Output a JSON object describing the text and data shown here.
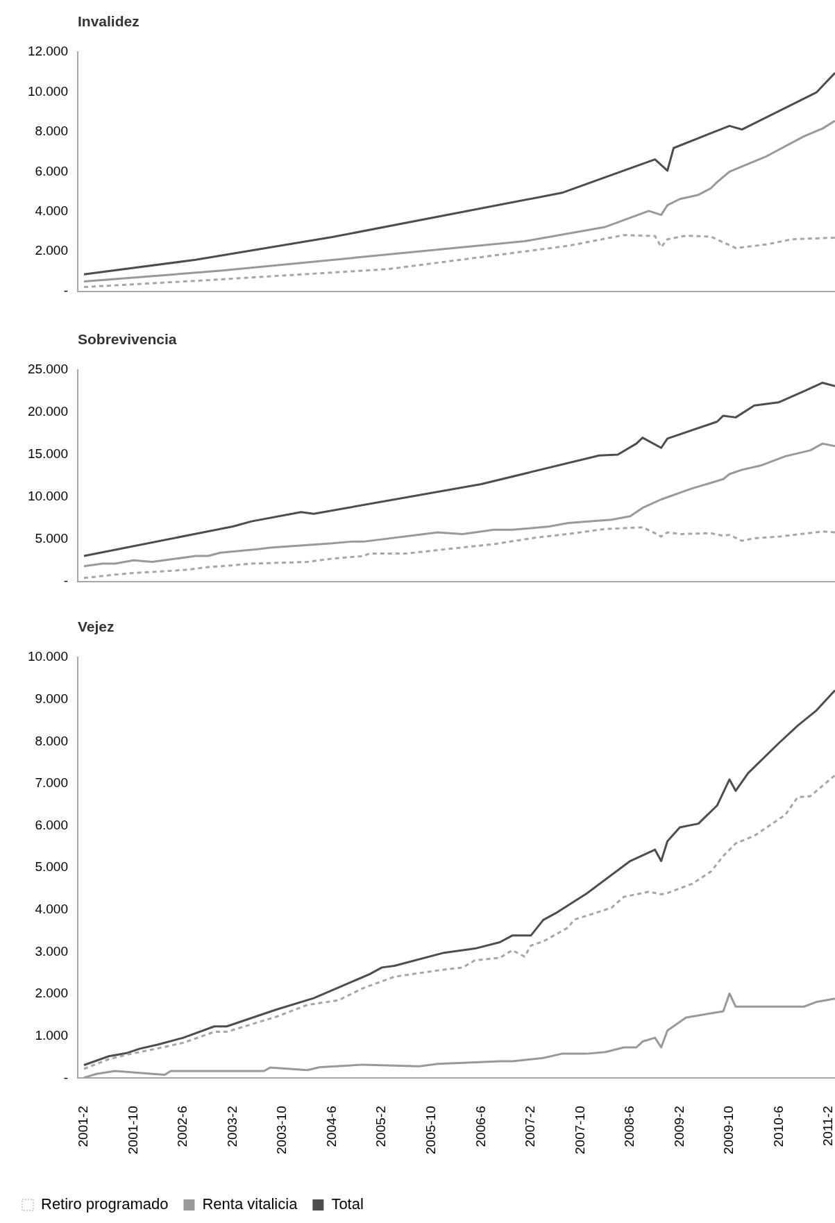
{
  "chart_data": [
    {
      "type": "line",
      "title": "Invalidez",
      "xlim": [
        "2001-01",
        "2011-03"
      ],
      "ylim": [
        0,
        12000
      ],
      "yticks": [
        {
          "value": 0,
          "label": "-"
        },
        {
          "value": 2000,
          "label": "2.000"
        },
        {
          "value": 4000,
          "label": "4.000"
        },
        {
          "value": 6000,
          "label": "6.000"
        },
        {
          "value": 8000,
          "label": "8.000"
        },
        {
          "value": 10000,
          "label": "10.000"
        },
        {
          "value": 12000,
          "label": "12.000"
        }
      ],
      "tick_labels": "y",
      "grid": false,
      "marker": "none",
      "series": [
        {
          "color": "#a6a6a6",
          "line_style": "dashed",
          "x": [
            "2001-02",
            "2002-09",
            "2005-03",
            "2007-08",
            "2008-05",
            "2008-10",
            "2008-11",
            "2008-12",
            "2009-03",
            "2009-07",
            "2009-11",
            "2010-04",
            "2010-08",
            "2011-03"
          ],
          "values": [
            210,
            540,
            1110,
            2280,
            2820,
            2770,
            2220,
            2610,
            2790,
            2740,
            2170,
            2350,
            2610,
            2690
          ]
        },
        {
          "color": "#999999",
          "line_style": "solid",
          "x": [
            "2001-02",
            "2002-12",
            "2007-01",
            "2008-02",
            "2008-09",
            "2008-11",
            "2008-12",
            "2009-02",
            "2009-05",
            "2009-07",
            "2009-08",
            "2009-10",
            "2009-12",
            "2010-04",
            "2010-10",
            "2011-01",
            "2011-03"
          ],
          "values": [
            490,
            1030,
            2510,
            3230,
            4030,
            3830,
            4320,
            4630,
            4840,
            5170,
            5480,
            6000,
            6260,
            6780,
            7780,
            8170,
            8560
          ]
        },
        {
          "color": "#4d4d4d",
          "line_style": "solid",
          "x": [
            "2001-02",
            "2002-08",
            "2004-06",
            "2007-07",
            "2008-10",
            "2008-12",
            "2009-01",
            "2009-10",
            "2009-12",
            "2010-12",
            "2011-03"
          ],
          "values": [
            850,
            1580,
            2720,
            4940,
            6620,
            6050,
            7190,
            8300,
            8120,
            9980,
            10960
          ]
        }
      ]
    },
    {
      "type": "line",
      "title": "Sobrevivencia",
      "xlim": [
        "2001-01",
        "2011-03"
      ],
      "ylim": [
        0,
        25000
      ],
      "yticks": [
        {
          "value": 0,
          "label": "-"
        },
        {
          "value": 5000,
          "label": "5.000"
        },
        {
          "value": 10000,
          "label": "10.000"
        },
        {
          "value": 15000,
          "label": "15.000"
        },
        {
          "value": 20000,
          "label": "20.000"
        },
        {
          "value": 25000,
          "label": "25.000"
        }
      ],
      "tick_labels": "y",
      "grid": false,
      "marker": "none",
      "series": [
        {
          "color": "#a6a6a6",
          "line_style": "dashed",
          "x": [
            "2001-02",
            "2001-07",
            "2001-10",
            "2002-03",
            "2002-07",
            "2002-10",
            "2003-02",
            "2003-05",
            "2004-02",
            "2004-06",
            "2004-11",
            "2004-12",
            "2005-06",
            "2005-11",
            "2006-04",
            "2006-08",
            "2007-03",
            "2007-09",
            "2008-02",
            "2008-08",
            "2008-10",
            "2008-11",
            "2008-12",
            "2009-02",
            "2009-07",
            "2009-09",
            "2009-10",
            "2009-12",
            "2010-02",
            "2010-06",
            "2011-01",
            "2011-03"
          ],
          "values": [
            400,
            800,
            1000,
            1200,
            1400,
            1700,
            1900,
            2100,
            2300,
            2700,
            3000,
            3300,
            3300,
            3700,
            4100,
            4400,
            5200,
            5700,
            6200,
            6400,
            5700,
            5300,
            5800,
            5600,
            5700,
            5400,
            5500,
            4800,
            5100,
            5300,
            5900,
            5800
          ]
        },
        {
          "color": "#999999",
          "line_style": "solid",
          "x": [
            "2001-02",
            "2001-05",
            "2001-07",
            "2001-10",
            "2002-01",
            "2002-08",
            "2002-10",
            "2002-12",
            "2003-06",
            "2003-08",
            "2004-02",
            "2004-06",
            "2004-09",
            "2004-11",
            "2005-11",
            "2006-03",
            "2006-08",
            "2006-11",
            "2007-05",
            "2007-08",
            "2008-03",
            "2008-06",
            "2008-08",
            "2008-11",
            "2009-04",
            "2009-09",
            "2009-10",
            "2009-12",
            "2010-03",
            "2010-07",
            "2010-11",
            "2011-01",
            "2011-03"
          ],
          "values": [
            1800,
            2100,
            2100,
            2500,
            2300,
            3000,
            3000,
            3400,
            3800,
            4000,
            4300,
            4500,
            4700,
            4700,
            5800,
            5600,
            6100,
            6100,
            6500,
            6900,
            7300,
            7700,
            8700,
            9700,
            11000,
            12100,
            12700,
            13200,
            13700,
            14800,
            15500,
            16300,
            16000
          ]
        },
        {
          "color": "#4d4d4d",
          "line_style": "solid",
          "x": [
            "2001-02",
            "2003-02",
            "2003-05",
            "2004-01",
            "2004-03",
            "2006-06",
            "2008-01",
            "2008-04",
            "2008-07",
            "2008-08",
            "2008-11",
            "2008-12",
            "2009-08",
            "2009-09",
            "2009-11",
            "2010-02",
            "2010-06",
            "2010-10",
            "2011-01",
            "2011-03"
          ],
          "values": [
            3000,
            6500,
            7100,
            8200,
            8000,
            11500,
            14900,
            15000,
            16300,
            17000,
            15800,
            16900,
            18900,
            19600,
            19400,
            20800,
            21200,
            22500,
            23500,
            23100
          ]
        }
      ]
    },
    {
      "type": "line",
      "title": "Vejez",
      "xlim": [
        "2001-01",
        "2011-03"
      ],
      "xticks": [
        {
          "value": "2001-02",
          "label": "2001-2"
        },
        {
          "value": "2001-10",
          "label": "2001-10"
        },
        {
          "value": "2002-06",
          "label": "2002-6"
        },
        {
          "value": "2003-02",
          "label": "2003-2"
        },
        {
          "value": "2003-10",
          "label": "2003-10"
        },
        {
          "value": "2004-06",
          "label": "2004-6"
        },
        {
          "value": "2005-02",
          "label": "2005-2"
        },
        {
          "value": "2005-10",
          "label": "2005-10"
        },
        {
          "value": "2006-06",
          "label": "2006-6"
        },
        {
          "value": "2007-02",
          "label": "2007-2"
        },
        {
          "value": "2007-10",
          "label": "2007-10"
        },
        {
          "value": "2008-06",
          "label": "2008-6"
        },
        {
          "value": "2009-02",
          "label": "2009-2"
        },
        {
          "value": "2009-10",
          "label": "2009-10"
        },
        {
          "value": "2010-06",
          "label": "2010-6"
        },
        {
          "value": "2011-02",
          "label": "2011-2"
        }
      ],
      "ylim": [
        0,
        10000
      ],
      "yticks": [
        {
          "value": 0,
          "label": "-"
        },
        {
          "value": 1000,
          "label": "1.000"
        },
        {
          "value": 2000,
          "label": "2.000"
        },
        {
          "value": 3000,
          "label": "3.000"
        },
        {
          "value": 4000,
          "label": "4.000"
        },
        {
          "value": 5000,
          "label": "5.000"
        },
        {
          "value": 6000,
          "label": "6.000"
        },
        {
          "value": 7000,
          "label": "7.000"
        },
        {
          "value": 8000,
          "label": "8.000"
        },
        {
          "value": 9000,
          "label": "9.000"
        },
        {
          "value": 10000,
          "label": "10.000"
        }
      ],
      "grid": false,
      "marker": "none",
      "legend": "bottom",
      "series": [
        {
          "name": "Retiro programado",
          "color": "#a6a6a6",
          "line_style": "dashed",
          "x": [
            "2001-02",
            "2001-06",
            "2001-09",
            "2002-02",
            "2002-06",
            "2002-11",
            "2003-01",
            "2003-09",
            "2004-02",
            "2004-07",
            "2004-11",
            "2005-04",
            "2005-11",
            "2006-03",
            "2006-05",
            "2006-09",
            "2006-11",
            "2007-01",
            "2007-02",
            "2007-04",
            "2007-08",
            "2007-09",
            "2007-11",
            "2008-03",
            "2008-05",
            "2008-09",
            "2008-11",
            "2008-12",
            "2009-04",
            "2009-07",
            "2009-09",
            "2009-11",
            "2010-02",
            "2010-07",
            "2010-09",
            "2010-11",
            "2011-03"
          ],
          "values": [
            220,
            450,
            560,
            710,
            840,
            1100,
            1100,
            1460,
            1740,
            1850,
            2140,
            2410,
            2560,
            2630,
            2800,
            2860,
            3040,
            2890,
            3150,
            3250,
            3580,
            3770,
            3860,
            4050,
            4310,
            4430,
            4370,
            4400,
            4620,
            4910,
            5280,
            5580,
            5760,
            6260,
            6680,
            6700,
            7200
          ]
        },
        {
          "name": "Renta vitalicia",
          "color": "#999999",
          "line_style": "solid",
          "x": [
            "2001-02",
            "2001-04",
            "2001-07",
            "2002-03",
            "2002-04",
            "2003-07",
            "2003-08",
            "2004-02",
            "2004-04",
            "2004-11",
            "2005-08",
            "2005-11",
            "2006-09",
            "2006-11",
            "2007-04",
            "2007-07",
            "2007-11",
            "2008-02",
            "2008-05",
            "2008-07",
            "2008-08",
            "2008-10",
            "2008-11",
            "2008-12",
            "2009-03",
            "2009-09",
            "2009-10",
            "2009-11",
            "2010-10",
            "2010-12",
            "2011-03"
          ],
          "values": [
            10,
            100,
            170,
            80,
            170,
            170,
            250,
            190,
            260,
            320,
            280,
            340,
            400,
            400,
            480,
            580,
            580,
            620,
            730,
            730,
            870,
            960,
            730,
            1130,
            1440,
            1590,
            2010,
            1700,
            1700,
            1810,
            1890
          ]
        },
        {
          "name": "Total",
          "color": "#4d4d4d",
          "line_style": "solid",
          "x": [
            "2001-02",
            "2001-06",
            "2001-09",
            "2001-11",
            "2002-02",
            "2002-06",
            "2002-11",
            "2003-01",
            "2003-09",
            "2004-03",
            "2004-12",
            "2005-02",
            "2005-04",
            "2005-12",
            "2006-05",
            "2006-09",
            "2006-11",
            "2007-02",
            "2007-04",
            "2007-06",
            "2007-11",
            "2008-06",
            "2008-10",
            "2008-11",
            "2008-12",
            "2009-02",
            "2009-05",
            "2009-08",
            "2009-10",
            "2009-11",
            "2010-01",
            "2010-06",
            "2010-09",
            "2010-12",
            "2011-03"
          ],
          "values": [
            310,
            520,
            600,
            700,
            800,
            960,
            1230,
            1230,
            1630,
            1900,
            2470,
            2630,
            2670,
            2980,
            3080,
            3230,
            3390,
            3390,
            3760,
            3920,
            4390,
            5160,
            5430,
            5160,
            5630,
            5960,
            6050,
            6480,
            7100,
            6830,
            7250,
            7970,
            8380,
            8740,
            9220
          ]
        }
      ]
    }
  ]
}
